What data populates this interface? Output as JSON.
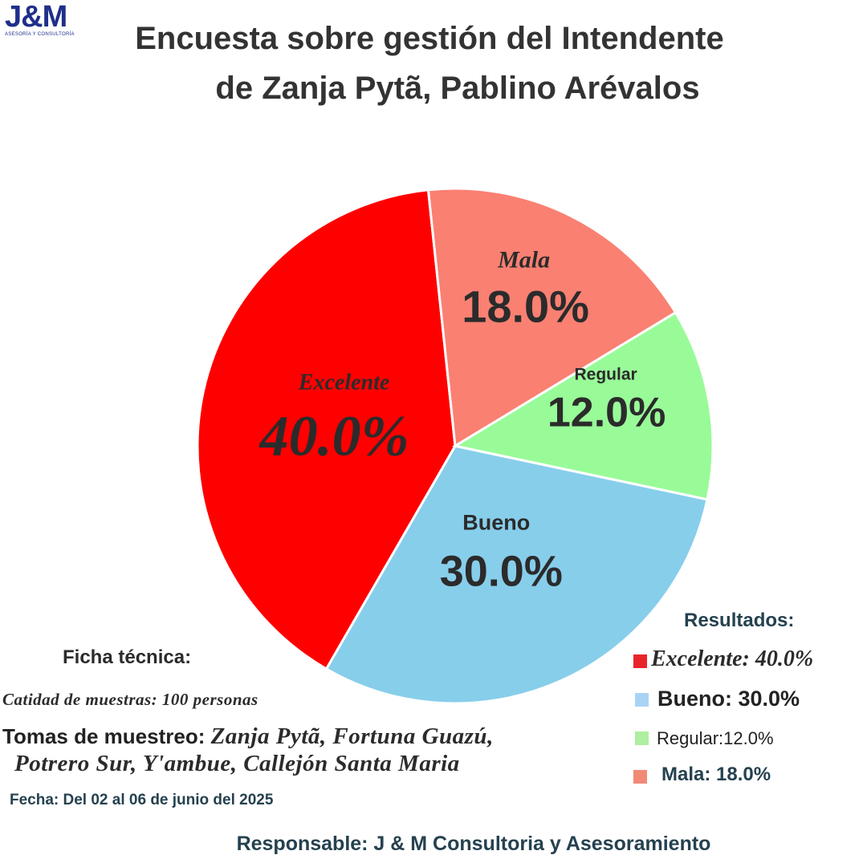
{
  "logo": {
    "mark": "J&M",
    "subtitle": "ASESORÍA Y CONSULTORÍA"
  },
  "title": {
    "line1": "Encuesta sobre gestión del Intendente",
    "line2": "de Zanja Pytã, Pablino Arévalos"
  },
  "chart_data": {
    "type": "pie",
    "title": "Encuesta sobre gestión del Intendente de Zanja Pytã, Pablino Arévalos",
    "slices": [
      {
        "name": "Bueno",
        "value": 30.0,
        "label": "30.0%",
        "color": "#87CEEB"
      },
      {
        "name": "Excelente",
        "value": 40.0,
        "label": "40.0%",
        "color": "#FF0000"
      },
      {
        "name": "Mala",
        "value": 18.0,
        "label": "18.0%",
        "color": "#FA8072"
      },
      {
        "name": "Regular",
        "value": 12.0,
        "label": "12.0%",
        "color": "#98FB98"
      }
    ]
  },
  "results": {
    "title": "Resultados:",
    "items": [
      {
        "text": "Excelente: 40.0%",
        "color": "#E8242A"
      },
      {
        "text": "Bueno: 30.0%",
        "color": "#A9D3F5"
      },
      {
        "text": "Regular:12.0%",
        "color": "#AEEFA0"
      },
      {
        "text": "Mala: 18.0%",
        "color": "#F08A75"
      }
    ]
  },
  "ficha": {
    "title": "Ficha técnica:",
    "muestras": "Catidad de muestras: 100 personas",
    "tomas_label": "Tomas de muestreo:",
    "tomas_line1": "Zanja Pytã,  Fortuna Guazú,",
    "tomas_line2": "Potrero Sur,  Y'ambue,  Callejón Santa Maria",
    "fecha": "Fecha: Del 02 al 06 de junio del 2025"
  },
  "responsable": "Responsable: J & M Consultoria y Asesoramiento"
}
